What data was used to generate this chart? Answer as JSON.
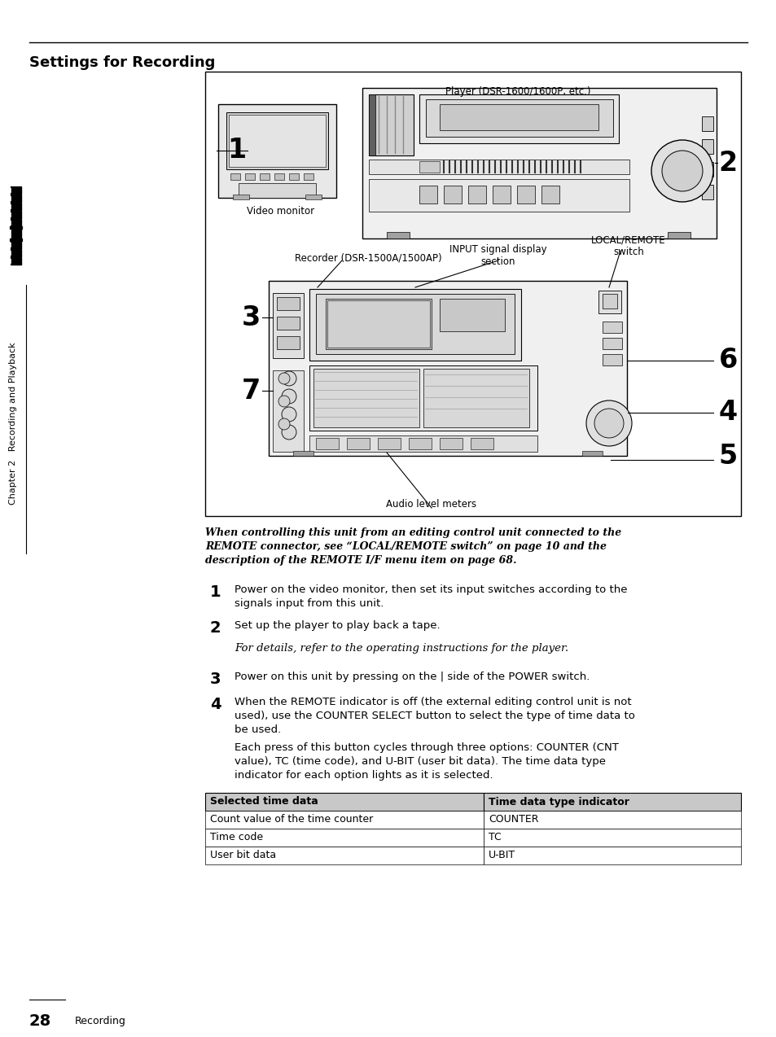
{
  "title": "Settings for Recording",
  "page_number": "28",
  "page_label": "Recording",
  "bg_color": "#ffffff",
  "sidebar_text": "Chapter 2   Recording and Playback",
  "italic_intro": "When controlling this unit from an editing control unit connected to the\nREMOTE connector, see “LOCAL/REMOTE switch” on page 10 and the\ndescription of the REMOTE I/F menu item on page 68.",
  "step1_num": "1",
  "step1_text": "Power on the video monitor, then set its input switches according to the\nsignals input from this unit.",
  "step2_num": "2",
  "step2_text": "Set up the player to play back a tape.",
  "step2_italic": "For details, refer to the operating instructions for the player.",
  "step3_num": "3",
  "step3_text": "Power on this unit by pressing on the | side of the POWER switch.",
  "step4_num": "4",
  "step4_text": "When the REMOTE indicator is off (the external editing control unit is not\nused), use the COUNTER SELECT button to select the type of time data to\nbe used.",
  "step4_para": "Each press of this button cycles through three options: COUNTER (CNT\nvalue), TC (time code), and U-BIT (user bit data). The time data type\nindicator for each option lights as it is selected.",
  "table_headers": [
    "Selected time data",
    "Time data type indicator"
  ],
  "table_rows": [
    [
      "Count value of the time counter",
      "COUNTER"
    ],
    [
      "Time code",
      "TC"
    ],
    [
      "User bit data",
      "U-BIT"
    ]
  ],
  "fig_label_player": "Player (DSR-1600/1600P, etc.)",
  "fig_label_video": "Video monitor",
  "fig_label_recorder": "Recorder (DSR-1500A/1500AP)",
  "fig_label_input": "INPUT signal display\nsection",
  "fig_label_remote": "LOCAL/REMOTE\nswitch",
  "fig_label_audio": "Audio level meters",
  "fig_num_1": "1",
  "fig_num_2": "2",
  "fig_num_3": "3",
  "fig_num_4": "4",
  "fig_num_5": "5",
  "fig_num_6": "6",
  "fig_num_7": "7"
}
